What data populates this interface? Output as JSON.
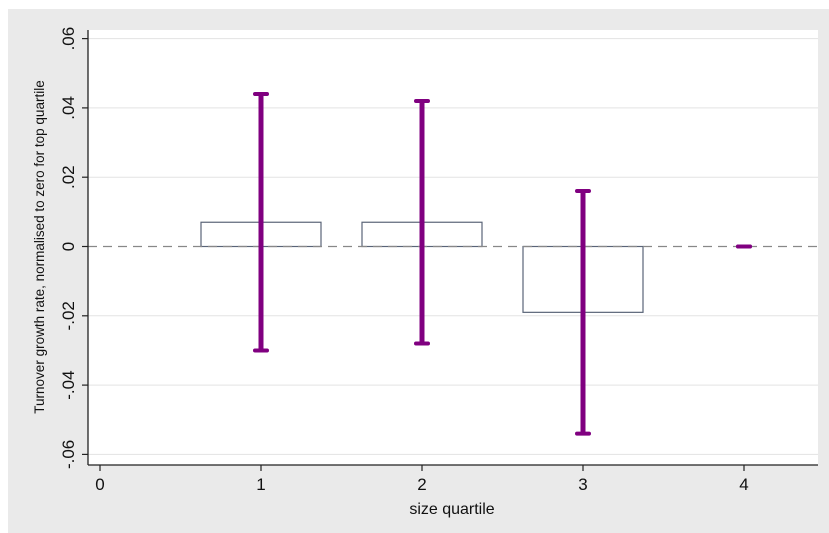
{
  "chart_data": {
    "type": "bar",
    "title": "",
    "xlabel": "size quartile",
    "ylabel": "Turnover growth rate, normalised to zero for top quartile",
    "xlim": [
      0,
      4
    ],
    "ylim": [
      -0.06,
      0.06
    ],
    "x_ticks": [
      {
        "value": 0,
        "label": "0"
      },
      {
        "value": 1,
        "label": "1"
      },
      {
        "value": 2,
        "label": "2"
      },
      {
        "value": 3,
        "label": "3"
      },
      {
        "value": 4,
        "label": "4"
      }
    ],
    "y_ticks": [
      {
        "value": -0.06,
        "label": "-.06"
      },
      {
        "value": -0.04,
        "label": "-.04"
      },
      {
        "value": -0.02,
        "label": "-.02"
      },
      {
        "value": 0,
        "label": "0"
      },
      {
        "value": 0.02,
        "label": ".02"
      },
      {
        "value": 0.04,
        "label": ".04"
      },
      {
        "value": 0.06,
        "label": ".06"
      }
    ],
    "categories": [
      1,
      2,
      3,
      4
    ],
    "values": [
      0.007,
      0.007,
      -0.019,
      0.0
    ],
    "ci_low": [
      -0.03,
      -0.028,
      -0.054,
      0.0
    ],
    "ci_high": [
      0.044,
      0.042,
      0.016,
      0.0
    ],
    "reference_line": 0,
    "grid": true,
    "colors": {
      "plot_background": "#ffffff",
      "outer_background": "#eaeaea",
      "bar_edge": "#5a6478",
      "error_bar": "#800080",
      "grid": "#e3e3e3",
      "reference_line": "#888888"
    }
  }
}
